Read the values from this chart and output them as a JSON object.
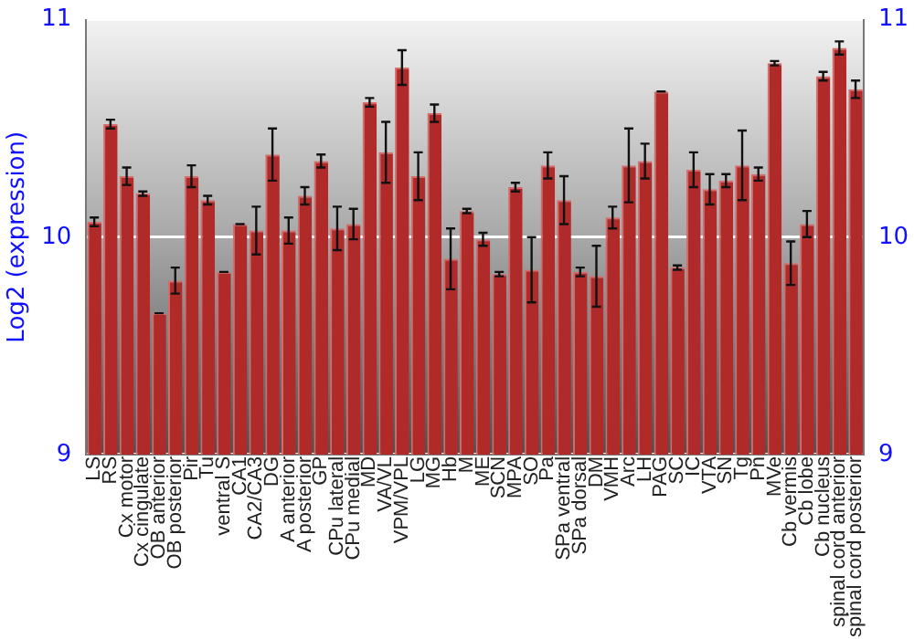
{
  "chart_data": {
    "type": "bar",
    "ylabel": "Log2 (expression)",
    "categories": [
      "LS",
      "RS",
      "Cx motor",
      "Cx cingulate",
      "OB anterior",
      "OB posterior",
      "Pir",
      "Tu",
      "ventral S",
      "CA1",
      "CA2/CA3",
      "DG",
      "A anterior",
      "A posterior",
      "GP",
      "CPu lateral",
      "CPu medial",
      "MD",
      "VA/VL",
      "VPM/VPL",
      "LG",
      "MG",
      "Hb",
      "M",
      "ME",
      "SCN",
      "MPA",
      "SO",
      "Pa",
      "SPa ventral",
      "SPa dorsal",
      "DM",
      "VMH",
      "Arc",
      "LH",
      "PAG",
      "SC",
      "IC",
      "VTA",
      "SN",
      "Tg",
      "Pn",
      "MVe",
      "Cb vermis",
      "Cb lobe",
      "Cb nucleus",
      "spinal cord anterior",
      "spinal cord posterior"
    ],
    "values": [
      10.07,
      10.52,
      10.28,
      10.2,
      9.65,
      9.8,
      10.28,
      10.17,
      9.84,
      10.06,
      10.03,
      10.38,
      10.03,
      10.19,
      10.35,
      10.04,
      10.06,
      10.62,
      10.39,
      10.78,
      10.28,
      10.57,
      9.9,
      10.12,
      9.99,
      9.83,
      10.23,
      9.85,
      10.33,
      10.17,
      9.84,
      9.82,
      10.09,
      10.33,
      10.35,
      10.67,
      9.86,
      10.31,
      10.22,
      10.26,
      10.33,
      10.29,
      10.8,
      9.88,
      10.06,
      10.74,
      10.87,
      10.68
    ],
    "errors": [
      0.02,
      0.02,
      0.04,
      0.01,
      0,
      0.06,
      0.05,
      0.02,
      0,
      0,
      0.11,
      0.12,
      0.06,
      0.04,
      0.03,
      0.1,
      0.07,
      0.02,
      0.14,
      0.08,
      0.11,
      0.04,
      0.14,
      0.01,
      0.03,
      0.01,
      0.02,
      0.15,
      0.06,
      0.11,
      0.02,
      0.14,
      0.05,
      0.17,
      0.08,
      0,
      0.01,
      0.08,
      0.07,
      0.03,
      0.16,
      0.03,
      0.01,
      0.1,
      0.06,
      0.02,
      0.03,
      0.04
    ],
    "color": "#b02a2a",
    "ylim": [
      9,
      11
    ],
    "yticks": [
      9,
      10,
      11
    ],
    "y2lim": [
      9,
      11
    ],
    "y2ticks": [
      9,
      10,
      11
    ],
    "grid": "y",
    "legend": false
  }
}
